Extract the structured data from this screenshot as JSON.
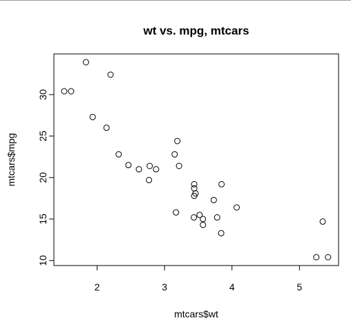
{
  "chart_data": {
    "type": "scatter",
    "title": "wt vs. mpg, mtcars",
    "xlabel": "mtcars$wt",
    "ylabel": "mtcars$mpg",
    "xlim": [
      1.36,
      5.58
    ],
    "ylim": [
      9.4,
      34.9
    ],
    "xticks": [
      2,
      3,
      4,
      5
    ],
    "yticks": [
      10,
      15,
      20,
      25,
      30
    ],
    "grid": false,
    "marker": "open-circle",
    "x": [
      2.62,
      2.875,
      2.32,
      3.215,
      3.44,
      3.46,
      3.57,
      3.19,
      3.15,
      3.44,
      3.44,
      4.07,
      3.73,
      3.78,
      5.25,
      5.424,
      5.345,
      2.2,
      1.615,
      1.835,
      2.465,
      3.52,
      3.435,
      3.84,
      3.845,
      1.935,
      2.14,
      1.513,
      3.17,
      2.77,
      3.57,
      2.78
    ],
    "y": [
      21.0,
      21.0,
      22.8,
      21.4,
      18.7,
      18.1,
      14.3,
      24.4,
      22.8,
      19.2,
      17.8,
      16.4,
      17.3,
      15.2,
      10.4,
      10.4,
      14.7,
      32.4,
      30.4,
      33.9,
      21.5,
      15.5,
      15.2,
      13.3,
      19.2,
      27.3,
      26.0,
      30.4,
      15.8,
      19.7,
      15.0,
      21.4
    ]
  }
}
